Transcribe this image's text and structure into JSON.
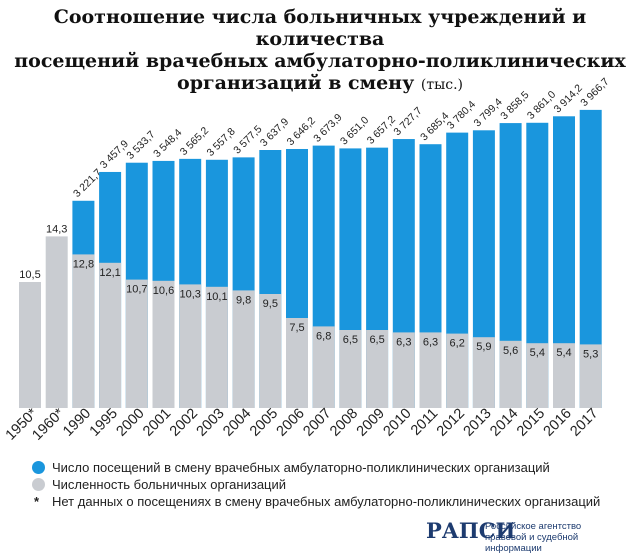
{
  "title": {
    "line1": "Соотношение числа больничных учреждений и количества",
    "line2": "посещений врачебных амбулаторно-поликлинических",
    "line3": "организаций в смену",
    "unit": "(тыс.)"
  },
  "chart_data": {
    "type": "bar",
    "categories": [
      "1950*",
      "1960*",
      "1990",
      "1995",
      "2000",
      "2001",
      "2002",
      "2003",
      "2004",
      "2005",
      "2006",
      "2007",
      "2008",
      "2009",
      "2010",
      "2011",
      "2012",
      "2013",
      "2014",
      "2015",
      "2016",
      "2017"
    ],
    "series": [
      {
        "name": "Число посещений в смену врачебных амбулаторно-поликлинических организаций",
        "color": "#1a96dd",
        "values": [
          null,
          null,
          3221.7,
          3457.9,
          3533.7,
          3548.4,
          3565.2,
          3557.8,
          3577.5,
          3637.9,
          3646.2,
          3673.9,
          3651.0,
          3657.2,
          3727.7,
          3685.4,
          3780.4,
          3799.4,
          3858.5,
          3861.0,
          3914.2,
          3966.7
        ],
        "labels": [
          "",
          "",
          "3 221,7",
          "3 457,9",
          "3 533,7",
          "3 548,4",
          "3 565,2",
          "3 557,8",
          "3 577,5",
          "3 637,9",
          "3 646,2",
          "3 673,9",
          "3 651,0",
          "3 657,2",
          "3 727,7",
          "3 685,4",
          "3 780,4",
          "3 799,4",
          "3 858,5",
          "3 861,0",
          "3 914,2",
          "3 966,7"
        ]
      },
      {
        "name": "Численность  больничных организаций",
        "color": "#c9ccd1",
        "values": [
          10.5,
          14.3,
          12.8,
          12.1,
          10.7,
          10.6,
          10.3,
          10.1,
          9.8,
          9.5,
          7.5,
          6.8,
          6.5,
          6.5,
          6.3,
          6.3,
          6.2,
          5.9,
          5.6,
          5.4,
          5.4,
          5.3
        ],
        "labels": [
          "10,5",
          "14,3",
          "12,8",
          "12,1",
          "10,7",
          "10,6",
          "10,3",
          "10,1",
          "9,8",
          "9,5",
          "7,5",
          "6,8",
          "6,5",
          "6,5",
          "6,3",
          "6,3",
          "6,2",
          "5,9",
          "5,6",
          "5,4",
          "5,4",
          "5,3"
        ]
      }
    ],
    "legend_position": "bottom-left",
    "grid": false
  },
  "legend": {
    "visits": "Число посещений в смену врачебных амбулаторно-поликлинических организаций",
    "hospitals": "Численность  больничных организаций",
    "note_mark": "*",
    "note": "Нет данных о посещениях в смену врачебных амбулаторно-поликлинических организаций"
  },
  "logo": {
    "name": "РАПСИ",
    "line1": "Российское агентство",
    "line2": "правовой и судебной информации"
  }
}
